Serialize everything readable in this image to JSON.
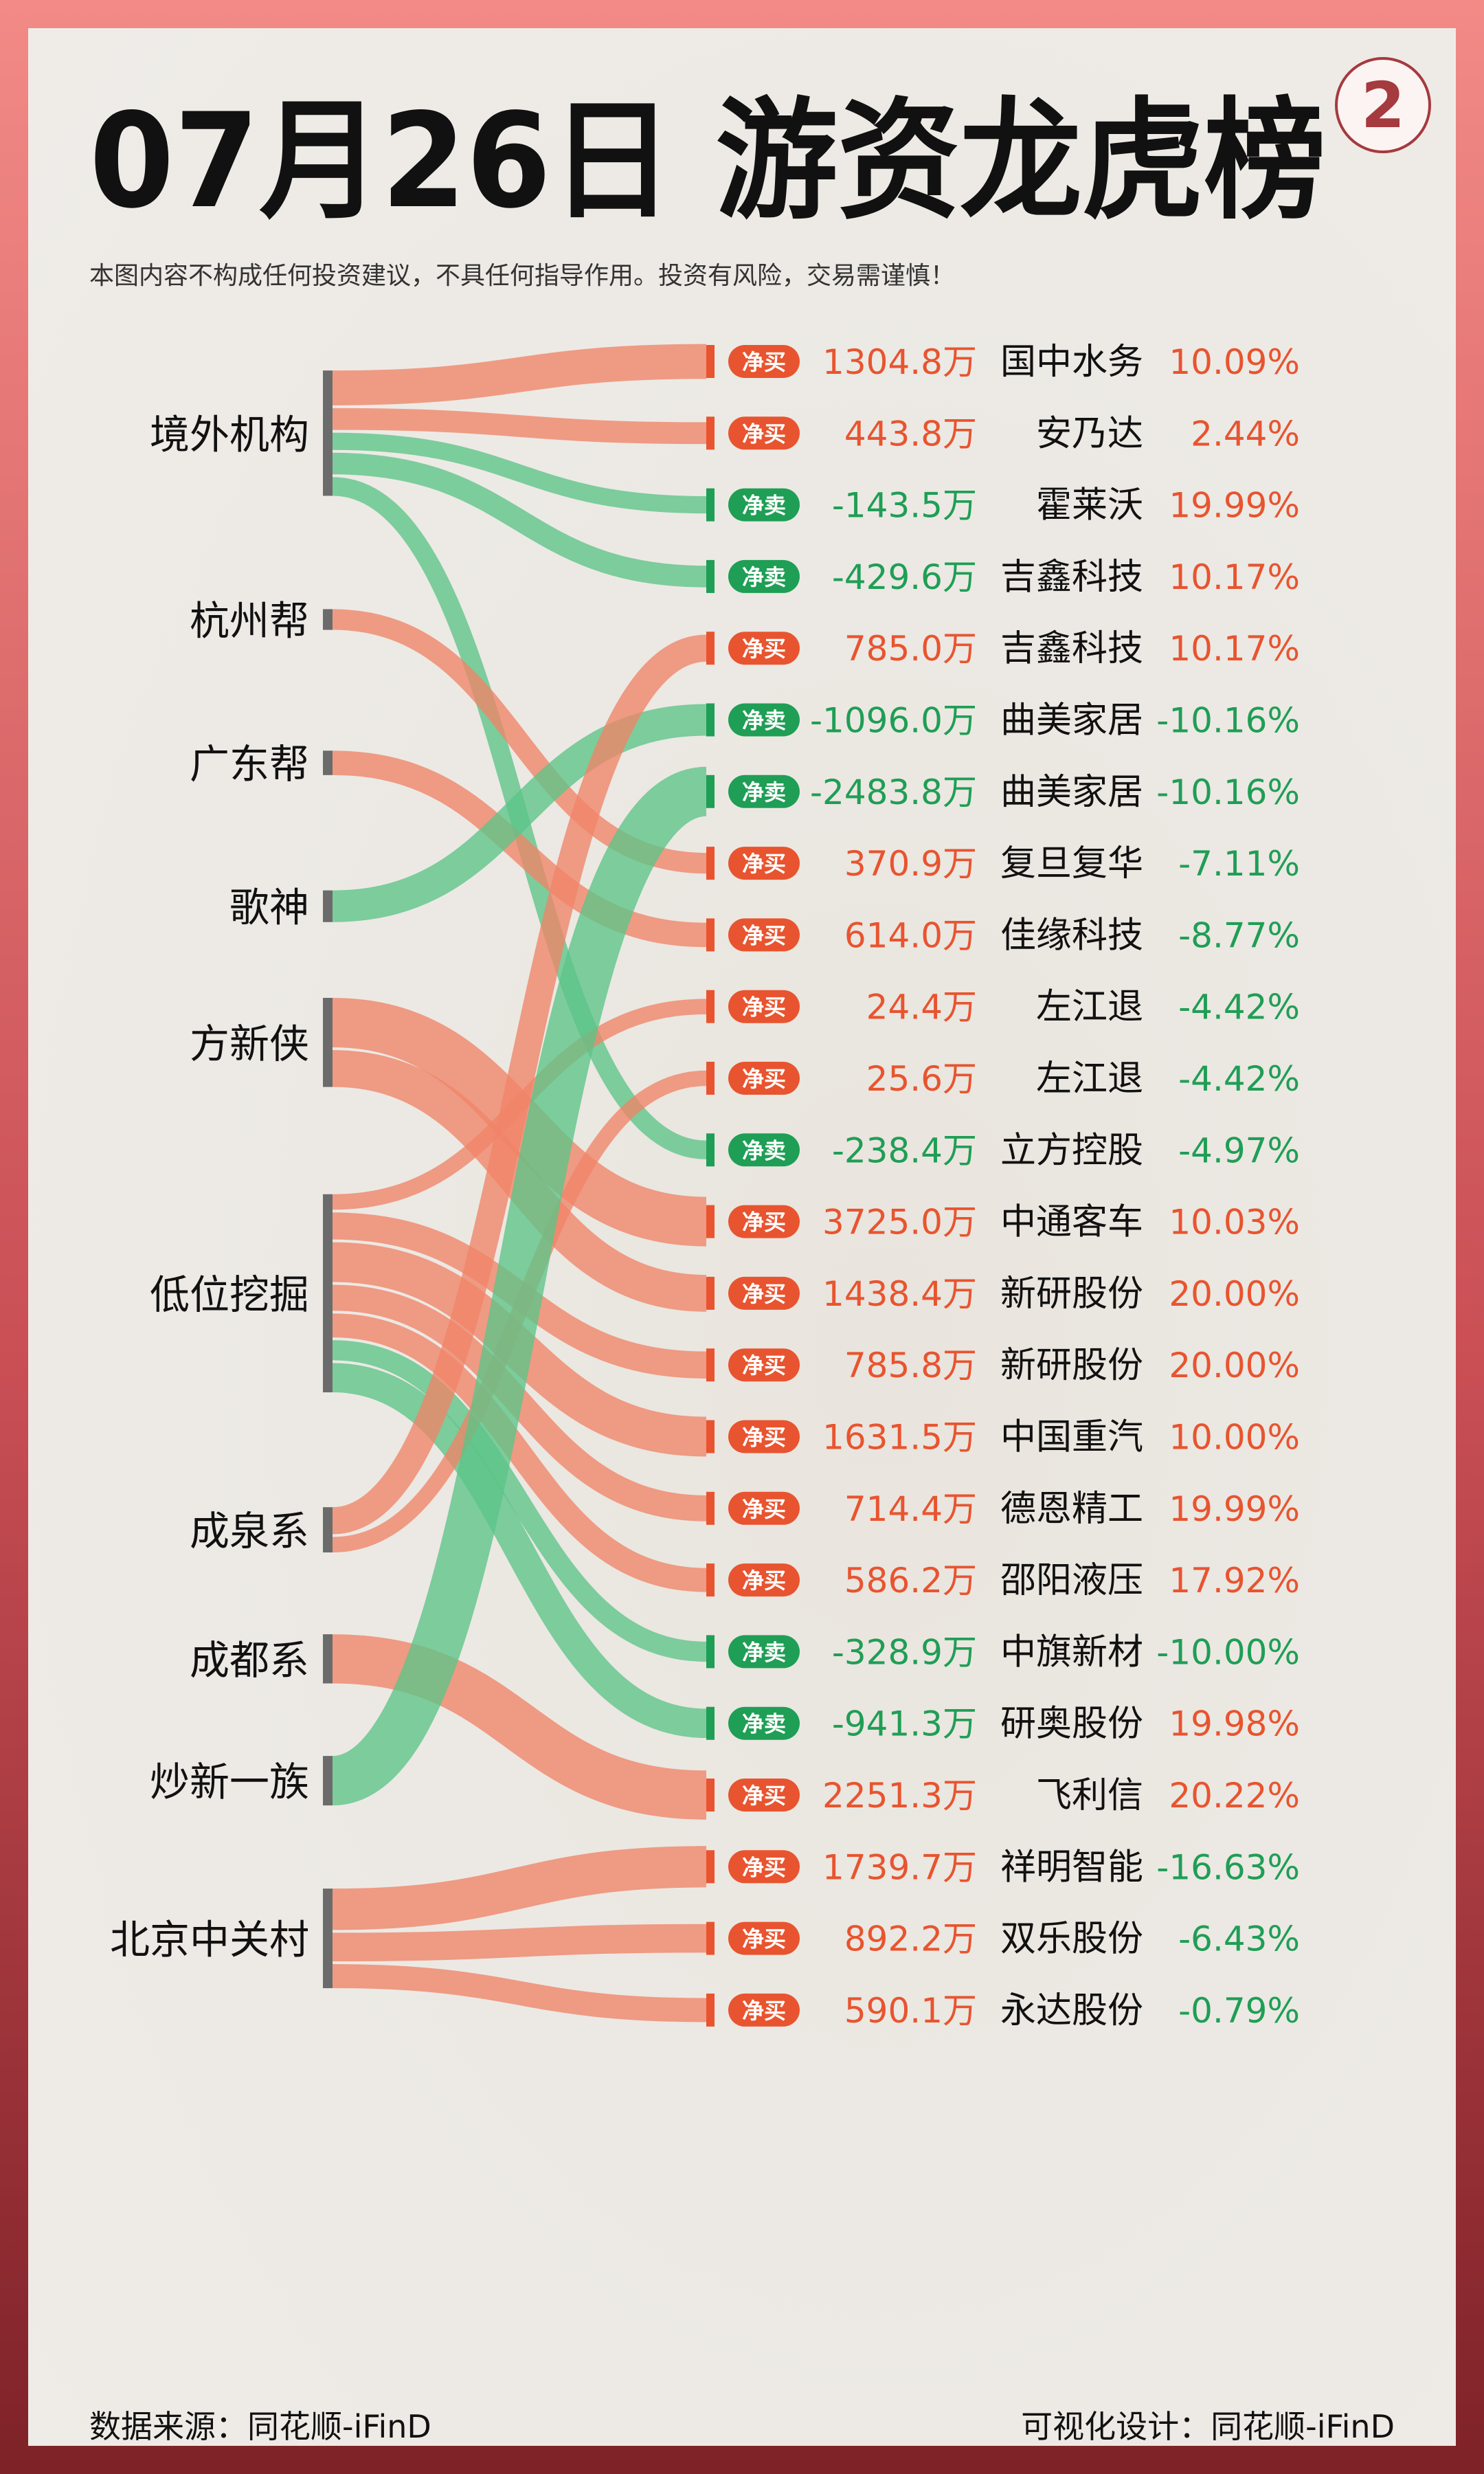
{
  "header": {
    "title": "07月26日 游资龙虎榜",
    "page_number": "2",
    "disclaimer": "本图内容不构成任何投资建议，不具任何指导作用。投资有风险，交易需谨慎！"
  },
  "footer": {
    "source": "数据来源：同花顺-iFinD",
    "design": "可视化设计：同花顺-iFinD"
  },
  "colors": {
    "buy": "#e8542f",
    "sell": "#1f9e55",
    "buy_flow": "#ef8468",
    "sell_flow": "#5cc488",
    "bar": "#6b6b6b"
  },
  "labels": {
    "buy": "净买",
    "sell": "净卖"
  },
  "chart_data": {
    "type": "sankey",
    "groups": [
      "境外机构",
      "杭州帮",
      "广东帮",
      "歌神",
      "方新侠",
      "低位挖掘",
      "成泉系",
      "成都系",
      "炒新一族",
      "北京中关村"
    ],
    "rows": [
      {
        "group": "境外机构",
        "action": "净买",
        "amount": "1304.8万",
        "amount_value": 1304.8,
        "stock": "国中水务",
        "change": "10.09%"
      },
      {
        "group": "境外机构",
        "action": "净买",
        "amount": "443.8万",
        "amount_value": 443.8,
        "stock": "安乃达",
        "change": "2.44%"
      },
      {
        "group": "境外机构",
        "action": "净卖",
        "amount": "-143.5万",
        "amount_value": -143.5,
        "stock": "霍莱沃",
        "change": "19.99%"
      },
      {
        "group": "境外机构",
        "action": "净卖",
        "amount": "-429.6万",
        "amount_value": -429.6,
        "stock": "吉鑫科技",
        "change": "10.17%"
      },
      {
        "group": "成泉系",
        "action": "净买",
        "amount": "785.0万",
        "amount_value": 785.0,
        "stock": "吉鑫科技",
        "change": "10.17%"
      },
      {
        "group": "歌神",
        "action": "净卖",
        "amount": "-1096.0万",
        "amount_value": -1096.0,
        "stock": "曲美家居",
        "change": "-10.16%"
      },
      {
        "group": "炒新一族",
        "action": "净卖",
        "amount": "-2483.8万",
        "amount_value": -2483.8,
        "stock": "曲美家居",
        "change": "-10.16%"
      },
      {
        "group": "杭州帮",
        "action": "净买",
        "amount": "370.9万",
        "amount_value": 370.9,
        "stock": "复旦复华",
        "change": "-7.11%"
      },
      {
        "group": "广东帮",
        "action": "净买",
        "amount": "614.0万",
        "amount_value": 614.0,
        "stock": "佳缘科技",
        "change": "-8.77%"
      },
      {
        "group": "低位挖掘",
        "action": "净买",
        "amount": "24.4万",
        "amount_value": 24.4,
        "stock": "左江退",
        "change": "-4.42%"
      },
      {
        "group": "成泉系",
        "action": "净买",
        "amount": "25.6万",
        "amount_value": 25.6,
        "stock": "左江退",
        "change": "-4.42%"
      },
      {
        "group": "境外机构",
        "action": "净卖",
        "amount": "-238.4万",
        "amount_value": -238.4,
        "stock": "立方控股",
        "change": "-4.97%"
      },
      {
        "group": "方新侠",
        "action": "净买",
        "amount": "3725.0万",
        "amount_value": 3725.0,
        "stock": "中通客车",
        "change": "10.03%"
      },
      {
        "group": "方新侠",
        "action": "净买",
        "amount": "1438.4万",
        "amount_value": 1438.4,
        "stock": "新研股份",
        "change": "20.00%"
      },
      {
        "group": "低位挖掘",
        "action": "净买",
        "amount": "785.8万",
        "amount_value": 785.8,
        "stock": "新研股份",
        "change": "20.00%"
      },
      {
        "group": "低位挖掘",
        "action": "净买",
        "amount": "1631.5万",
        "amount_value": 1631.5,
        "stock": "中国重汽",
        "change": "10.00%"
      },
      {
        "group": "低位挖掘",
        "action": "净买",
        "amount": "714.4万",
        "amount_value": 714.4,
        "stock": "德恩精工",
        "change": "19.99%"
      },
      {
        "group": "低位挖掘",
        "action": "净买",
        "amount": "586.2万",
        "amount_value": 586.2,
        "stock": "邵阳液压",
        "change": "17.92%"
      },
      {
        "group": "低位挖掘",
        "action": "净卖",
        "amount": "-328.9万",
        "amount_value": -328.9,
        "stock": "中旗新材",
        "change": "-10.00%"
      },
      {
        "group": "低位挖掘",
        "action": "净卖",
        "amount": "-941.3万",
        "amount_value": -941.3,
        "stock": "研奥股份",
        "change": "19.98%"
      },
      {
        "group": "成都系",
        "action": "净买",
        "amount": "2251.3万",
        "amount_value": 2251.3,
        "stock": "飞利信",
        "change": "20.22%"
      },
      {
        "group": "北京中关村",
        "action": "净买",
        "amount": "1739.7万",
        "amount_value": 1739.7,
        "stock": "祥明智能",
        "change": "-16.63%"
      },
      {
        "group": "北京中关村",
        "action": "净买",
        "amount": "892.2万",
        "amount_value": 892.2,
        "stock": "双乐股份",
        "change": "-6.43%"
      },
      {
        "group": "北京中关村",
        "action": "净买",
        "amount": "590.1万",
        "amount_value": 590.1,
        "stock": "永达股份",
        "change": "-0.79%"
      }
    ]
  }
}
